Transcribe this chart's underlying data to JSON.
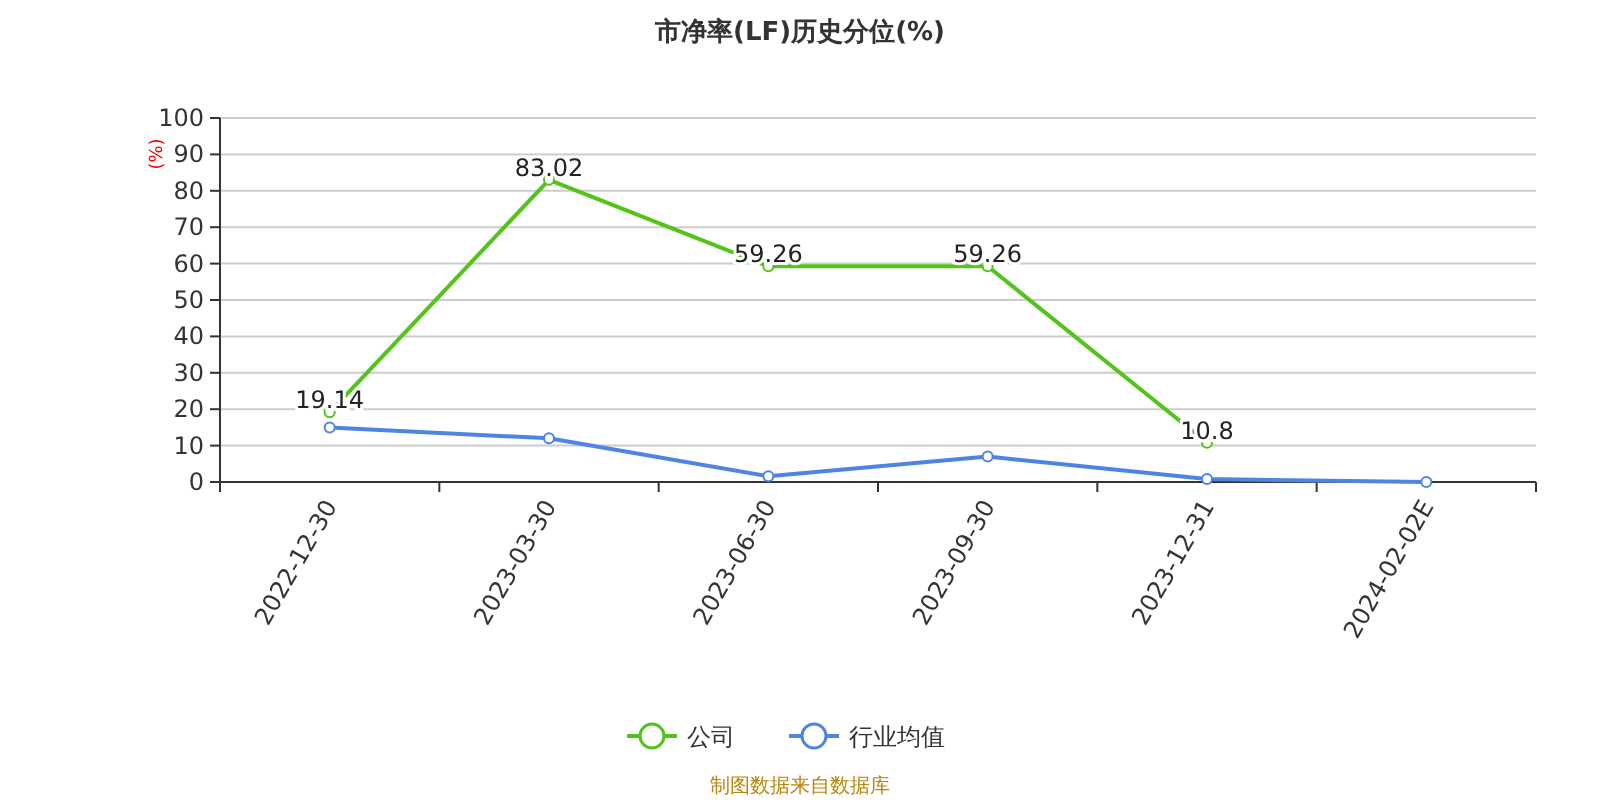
{
  "chart_data": {
    "type": "line",
    "title": "市净率(LF)历史分位(%)",
    "ylabel": "(%)",
    "categories": [
      "2022-12-30",
      "2023-03-30",
      "2023-06-30",
      "2023-09-30",
      "2023-12-31",
      "2024-02-02E"
    ],
    "series": [
      {
        "name": "公司",
        "color": "#52c41a",
        "values": [
          19.14,
          83.02,
          59.26,
          59.26,
          10.8,
          null
        ],
        "value_labels": [
          "19.14",
          "83.02",
          "59.26",
          "59.26",
          "10.8",
          null
        ]
      },
      {
        "name": "行业均值",
        "color": "#4e84e6",
        "values": [
          15,
          12,
          1.6,
          7,
          0.8,
          0
        ]
      }
    ],
    "ylim": [
      0,
      100
    ],
    "yticks": [
      0,
      10,
      20,
      30,
      40,
      50,
      60,
      70,
      80,
      90,
      100
    ],
    "grid": "y",
    "legend": "bottom",
    "marker": "circle",
    "annotations": [
      "制图数据来自数据库"
    ]
  }
}
